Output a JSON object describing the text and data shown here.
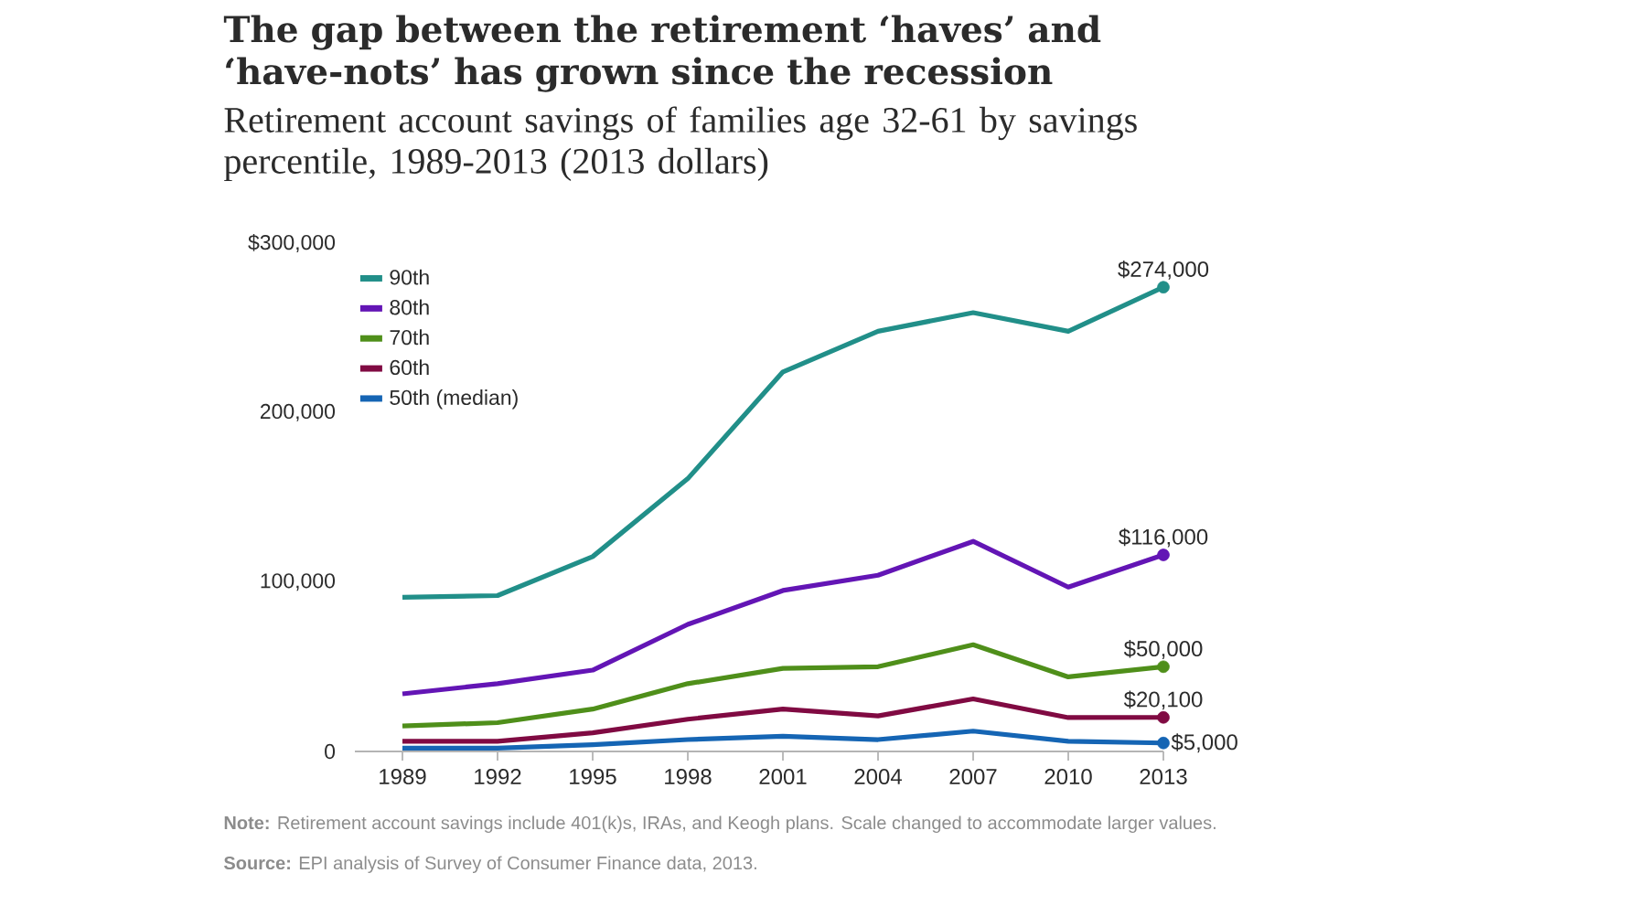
{
  "chart_data": {
    "type": "line",
    "title": "The gap between the retirement ‘haves’ and ‘have-nots’ has grown since the recession",
    "subtitle": "Retirement account savings of families age 32-61 by savings percentile, 1989-2013 (2013 dollars)",
    "x": [
      1989,
      1992,
      1995,
      1998,
      2001,
      2004,
      2007,
      2010,
      2013
    ],
    "xlim": [
      1987.5,
      2013
    ],
    "xticks": [
      1989,
      1992,
      1995,
      1998,
      2001,
      2004,
      2007,
      2010,
      2013
    ],
    "ylim": [
      0,
      300000
    ],
    "yticks": [
      0,
      {
        "value": 100000,
        "label": "100,000"
      },
      {
        "value": 200000,
        "label": "200,000"
      },
      {
        "value": 300000,
        "label": "$300,000"
      }
    ],
    "legend": "top left",
    "marker": "none",
    "line_style": "solid",
    "series": [
      {
        "name": "90th",
        "color": "#218f89",
        "values": [
          91000,
          92000,
          115000,
          161000,
          224000,
          248000,
          259000,
          248000,
          274000
        ],
        "value_labels": [
          null,
          null,
          null,
          null,
          null,
          null,
          null,
          null,
          "$274,000"
        ]
      },
      {
        "name": "80th",
        "color": "#6315b5",
        "values": [
          34000,
          40000,
          48000,
          75000,
          95000,
          104000,
          124000,
          97000,
          116000
        ],
        "value_labels": [
          null,
          null,
          null,
          null,
          null,
          null,
          null,
          null,
          "$116,000"
        ]
      },
      {
        "name": "70th",
        "color": "#4f8f1a",
        "values": [
          15000,
          17000,
          25000,
          40000,
          49000,
          50000,
          63000,
          44000,
          50000
        ],
        "value_labels": [
          null,
          null,
          null,
          null,
          null,
          null,
          null,
          null,
          "$50,000"
        ]
      },
      {
        "name": "60th",
        "color": "#800a42",
        "values": [
          6000,
          6000,
          11000,
          19000,
          25000,
          21000,
          31000,
          20000,
          20100
        ],
        "value_labels": [
          null,
          null,
          null,
          null,
          null,
          null,
          null,
          null,
          "$20,100"
        ]
      },
      {
        "name": "50th (median)",
        "color": "#1565b4",
        "values": [
          2000,
          2000,
          4000,
          7000,
          9000,
          7000,
          12000,
          6000,
          5000
        ],
        "value_labels": [
          null,
          null,
          null,
          null,
          null,
          null,
          null,
          null,
          "$5,000"
        ]
      }
    ],
    "annotations": [
      "**Note:** Retirement account savings include 401(k)s, IRAs, and Keogh plans. Scale changed to accommodate larger values.",
      "**Source:** EPI analysis of Survey of Consumer Finance data, 2013."
    ]
  }
}
